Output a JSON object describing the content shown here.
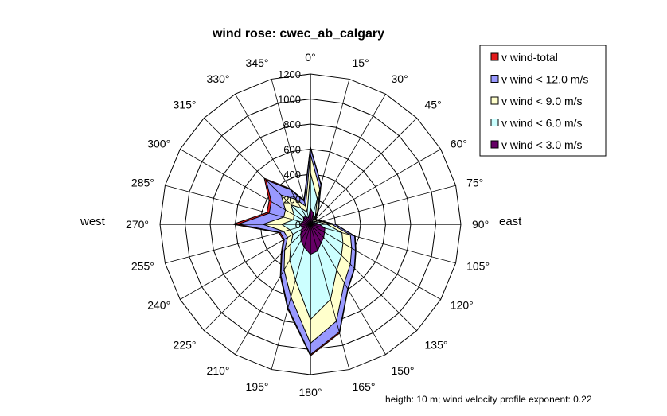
{
  "chart_data": {
    "type": "radar",
    "title": "wind rose: cwec_ab_calgary",
    "angle_labels": [
      "0°",
      "15°",
      "30°",
      "45°",
      "60°",
      "75°",
      "90°",
      "105°",
      "120°",
      "135°",
      "150°",
      "165°",
      "180°",
      "195°",
      "210°",
      "225°",
      "240°",
      "255°",
      "270°",
      "285°",
      "300°",
      "315°",
      "330°",
      "345°"
    ],
    "radial_labels": [
      "0",
      "200",
      "400",
      "600",
      "800",
      "1000",
      "1200"
    ],
    "rmax": 1200,
    "rstep": 200,
    "side_labels": {
      "east": "east",
      "west": "west"
    },
    "note": "heigth: 10 m; wind velocity profile exponent: 0.22",
    "legend_position": "top-right",
    "series": [
      {
        "name": "v wind-total",
        "color": "#e31a1c",
        "values": [
          620,
          330,
          130,
          60,
          70,
          100,
          200,
          370,
          420,
          500,
          600,
          900,
          1050,
          700,
          480,
          330,
          250,
          260,
          620,
          360,
          380,
          520,
          330,
          200
        ]
      },
      {
        "name": "v wind < 12.0 m/s",
        "color": "#9999ff",
        "values": [
          610,
          325,
          128,
          58,
          68,
          98,
          195,
          365,
          415,
          495,
          595,
          890,
          1040,
          690,
          470,
          320,
          240,
          250,
          580,
          340,
          360,
          500,
          320,
          190
        ]
      },
      {
        "name": "v wind < 9.0 m/s",
        "color": "#ffffcc",
        "values": [
          560,
          290,
          110,
          50,
          60,
          90,
          170,
          330,
          380,
          450,
          540,
          800,
          950,
          600,
          420,
          290,
          210,
          220,
          380,
          220,
          230,
          330,
          230,
          150
        ]
      },
      {
        "name": "v wind < 6.0 m/s",
        "color": "#ccffff",
        "values": [
          410,
          210,
          80,
          38,
          45,
          70,
          130,
          260,
          300,
          350,
          420,
          620,
          760,
          460,
          330,
          220,
          160,
          170,
          230,
          140,
          150,
          220,
          150,
          100
        ]
      },
      {
        "name": "v wind < 3.0 m/s",
        "color": "#660066",
        "values": [
          130,
          90,
          40,
          22,
          30,
          45,
          70,
          120,
          130,
          150,
          170,
          220,
          240,
          190,
          150,
          110,
          80,
          70,
          90,
          65,
          60,
          80,
          70,
          55
        ]
      }
    ]
  }
}
